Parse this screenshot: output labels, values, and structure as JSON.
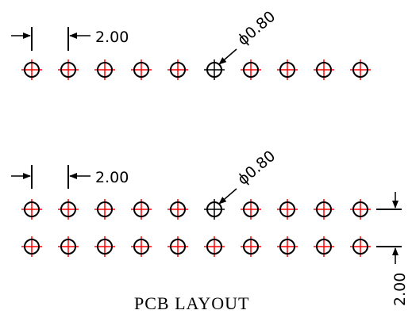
{
  "colors": {
    "centerline": "#ff0000",
    "pad": "#000000",
    "background": "#ffffff"
  },
  "pitch": "2.00",
  "hole_diameter": "ϕ0.80",
  "title": "PCB LAYOUT",
  "layout_1": {
    "rows": 1,
    "pads_per_row": 10,
    "highlighted_pad_index": 5
  },
  "layout_2": {
    "rows": 2,
    "pads_per_row": 10,
    "highlighted_pad_index": 5
  }
}
